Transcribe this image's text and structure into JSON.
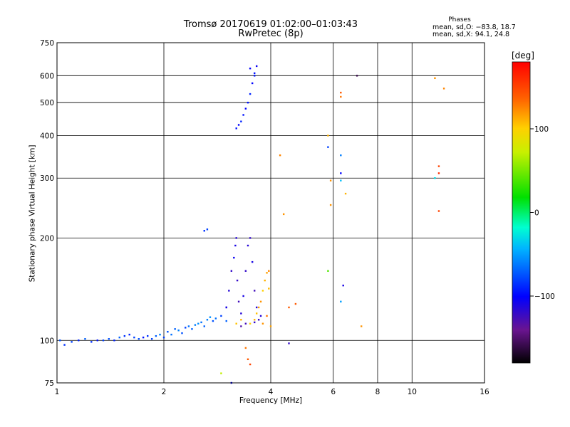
{
  "title": "Tromsø 20170619 01:02:00–01:03:43",
  "subtitle": "RwPretec (8p)",
  "stats": {
    "heading": "Phases",
    "line1": "mean, sd,O: −83.8, 18.7",
    "line2": "mean, sd,X:  94.1, 24.8"
  },
  "colorbar": {
    "unit": "[deg]",
    "ticks": [
      "100",
      "0",
      "−100"
    ],
    "tick_values": [
      100,
      0,
      -100
    ],
    "range": [
      -180,
      180
    ]
  },
  "chart_data": {
    "type": "scatter",
    "xlabel": "Frequency [MHz]",
    "ylabel": "Stationary phase Virtual Height [km]",
    "x_scale": "log2",
    "y_scale": "log",
    "xlim": [
      1,
      16
    ],
    "ylim": [
      75,
      750
    ],
    "x_ticks": [
      1,
      2,
      4,
      6,
      8,
      10,
      16
    ],
    "x_tick_labels": [
      "1",
      "2",
      "4",
      "6",
      "8",
      "10",
      "16"
    ],
    "y_ticks": [
      75,
      100,
      200,
      300,
      400,
      500,
      600,
      750
    ],
    "y_tick_labels": [
      "75",
      "100",
      "200",
      "300",
      "400",
      "500",
      "600",
      "750"
    ],
    "grid": true,
    "color_encoding": "phase [deg]",
    "series": [
      {
        "points": [
          [
            1.02,
            100,
            -75
          ],
          [
            1.05,
            97,
            -85
          ],
          [
            1.1,
            99,
            -80
          ],
          [
            1.15,
            100,
            -90
          ],
          [
            1.2,
            101,
            -70
          ],
          [
            1.25,
            99,
            -85
          ],
          [
            1.3,
            100,
            -95
          ],
          [
            1.35,
            100,
            -80
          ],
          [
            1.4,
            101,
            -75
          ],
          [
            1.45,
            100,
            -90
          ],
          [
            1.5,
            102,
            -70
          ],
          [
            1.55,
            103,
            -85
          ],
          [
            1.6,
            104,
            -90
          ],
          [
            1.65,
            102,
            -80
          ],
          [
            1.7,
            101,
            -75
          ],
          [
            1.75,
            102,
            -95
          ],
          [
            1.8,
            103,
            -85
          ],
          [
            1.85,
            101,
            -80
          ],
          [
            1.9,
            103,
            -70
          ],
          [
            1.95,
            104,
            -60
          ],
          [
            2.0,
            102,
            -80
          ],
          [
            2.05,
            106,
            -75
          ],
          [
            2.1,
            104,
            -65
          ],
          [
            2.15,
            108,
            -70
          ],
          [
            2.2,
            107,
            -60
          ],
          [
            2.25,
            105,
            -75
          ],
          [
            2.3,
            109,
            -80
          ],
          [
            2.35,
            110,
            -65
          ],
          [
            2.4,
            108,
            -70
          ],
          [
            2.45,
            111,
            -60
          ],
          [
            2.5,
            112,
            -55
          ],
          [
            2.55,
            113,
            -65
          ],
          [
            2.6,
            110,
            -70
          ],
          [
            2.65,
            115,
            -60
          ],
          [
            2.7,
            117,
            -55
          ],
          [
            2.75,
            114,
            -75
          ],
          [
            2.8,
            116,
            -65
          ],
          [
            2.9,
            118,
            -80
          ],
          [
            3.0,
            114,
            -70
          ],
          [
            2.6,
            210,
            -85
          ],
          [
            2.65,
            212,
            -80
          ]
        ]
      },
      {
        "points": [
          [
            3.0,
            125,
            -110
          ],
          [
            3.05,
            140,
            -115
          ],
          [
            3.1,
            160,
            -120
          ],
          [
            3.15,
            175,
            -105
          ],
          [
            3.18,
            190,
            -110
          ],
          [
            3.2,
            200,
            -115
          ],
          [
            3.22,
            150,
            -120
          ],
          [
            3.25,
            130,
            -125
          ],
          [
            3.3,
            120,
            -115
          ],
          [
            3.35,
            135,
            -110
          ],
          [
            3.4,
            160,
            -120
          ],
          [
            3.45,
            190,
            -115
          ],
          [
            3.5,
            200,
            -120
          ],
          [
            3.55,
            170,
            -110
          ],
          [
            3.6,
            140,
            -125
          ],
          [
            3.65,
            125,
            -115
          ],
          [
            3.7,
            115,
            -120
          ],
          [
            3.3,
            110,
            -130
          ],
          [
            3.4,
            112,
            -125
          ],
          [
            3.6,
            113,
            -120
          ],
          [
            3.75,
            118,
            -115
          ],
          [
            3.2,
            420,
            -95
          ],
          [
            3.25,
            430,
            -100
          ],
          [
            3.3,
            440,
            -90
          ],
          [
            3.35,
            460,
            -95
          ],
          [
            3.4,
            480,
            -100
          ],
          [
            3.45,
            500,
            -95
          ],
          [
            3.5,
            530,
            -90
          ],
          [
            3.55,
            570,
            -100
          ],
          [
            3.6,
            610,
            -95
          ],
          [
            3.65,
            640,
            -105
          ],
          [
            3.5,
            630,
            -100
          ],
          [
            3.6,
            600,
            -95
          ]
        ]
      },
      {
        "points": [
          [
            3.6,
            115,
            110
          ],
          [
            3.65,
            120,
            105
          ],
          [
            3.7,
            125,
            115
          ],
          [
            3.75,
            130,
            120
          ],
          [
            3.8,
            140,
            100
          ],
          [
            3.85,
            150,
            110
          ],
          [
            3.9,
            158,
            115
          ],
          [
            3.95,
            160,
            125
          ],
          [
            3.8,
            112,
            120
          ],
          [
            3.9,
            118,
            130
          ],
          [
            4.0,
            110,
            115
          ],
          [
            3.2,
            112,
            105
          ],
          [
            3.3,
            115,
            110
          ],
          [
            3.5,
            112,
            100
          ],
          [
            3.95,
            142,
            108
          ],
          [
            4.25,
            350,
            125
          ],
          [
            4.35,
            235,
            120
          ],
          [
            4.5,
            125,
            140
          ],
          [
            4.7,
            128,
            140
          ],
          [
            5.8,
            400,
            110
          ],
          [
            5.9,
            295,
            120
          ],
          [
            5.9,
            250,
            120
          ],
          [
            6.3,
            535,
            140
          ],
          [
            6.3,
            520,
            130
          ],
          [
            6.5,
            270,
            110
          ],
          [
            7.2,
            110,
            120
          ],
          [
            11.6,
            590,
            120
          ],
          [
            12.3,
            550,
            125
          ],
          [
            11.9,
            240,
            150
          ],
          [
            11.9,
            310,
            160
          ],
          [
            11.9,
            325,
            150
          ],
          [
            3.45,
            88,
            140
          ],
          [
            3.5,
            85,
            150
          ],
          [
            3.4,
            95,
            130
          ],
          [
            2.9,
            80,
            70
          ]
        ]
      },
      {
        "points": [
          [
            5.8,
            370,
            -80
          ],
          [
            6.3,
            350,
            -60
          ],
          [
            6.3,
            310,
            -100
          ],
          [
            6.3,
            295,
            -40
          ],
          [
            6.4,
            145,
            -110
          ],
          [
            6.3,
            130,
            -50
          ],
          [
            5.8,
            160,
            40
          ],
          [
            4.5,
            98,
            -120
          ],
          [
            7.0,
            600,
            -160
          ],
          [
            11.6,
            300,
            -30
          ],
          [
            3.1,
            75,
            -100
          ],
          [
            3.0,
            125,
            -110
          ]
        ]
      }
    ]
  }
}
